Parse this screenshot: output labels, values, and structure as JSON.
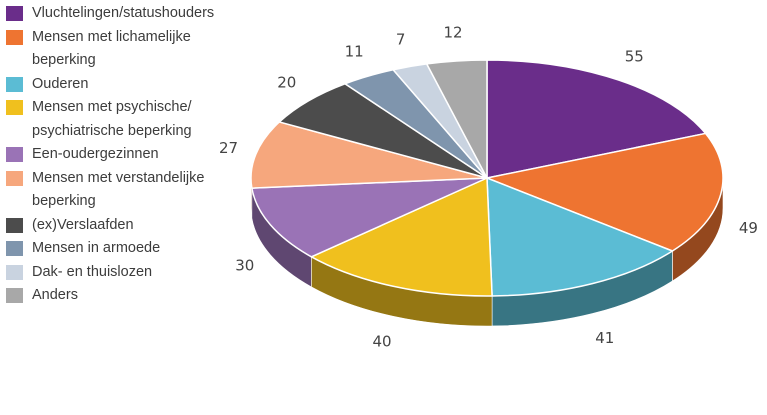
{
  "chart_data": {
    "type": "pie",
    "style": "3d",
    "legend_position": "left",
    "title": "",
    "categories": [
      "Vluchtelingen/statushouders",
      "Mensen met lichamelijke beperking",
      "Ouderen",
      "Mensen met psychische/ psychiatrische beperking",
      "Een-oudergezinnen",
      "Mensen met verstandelijke beperking",
      "(ex)Verslaafden",
      "Mensen in armoede",
      "Dak- en thuislozen",
      "Anders"
    ],
    "legend_lines": [
      [
        "Vluchtelingen/statushouders"
      ],
      [
        "Mensen met lichamelijke",
        "beperking"
      ],
      [
        "Ouderen"
      ],
      [
        "Mensen met psychische/",
        "psychiatrische beperking"
      ],
      [
        "Een-oudergezinnen"
      ],
      [
        "Mensen met verstandelijke",
        "beperking"
      ],
      [
        "(ex)Verslaafden"
      ],
      [
        "Mensen in armoede"
      ],
      [
        "Dak- en thuislozen"
      ],
      [
        "Anders"
      ]
    ],
    "values": [
      55,
      49,
      41,
      40,
      30,
      27,
      20,
      11,
      7,
      12
    ],
    "colors": [
      "#6a2d8a",
      "#ee7431",
      "#5bbcd4",
      "#f0c01e",
      "#9a73b6",
      "#f6a77d",
      "#4c4c4c",
      "#7f95ad",
      "#c9d3e0",
      "#a8a8a8"
    ]
  }
}
